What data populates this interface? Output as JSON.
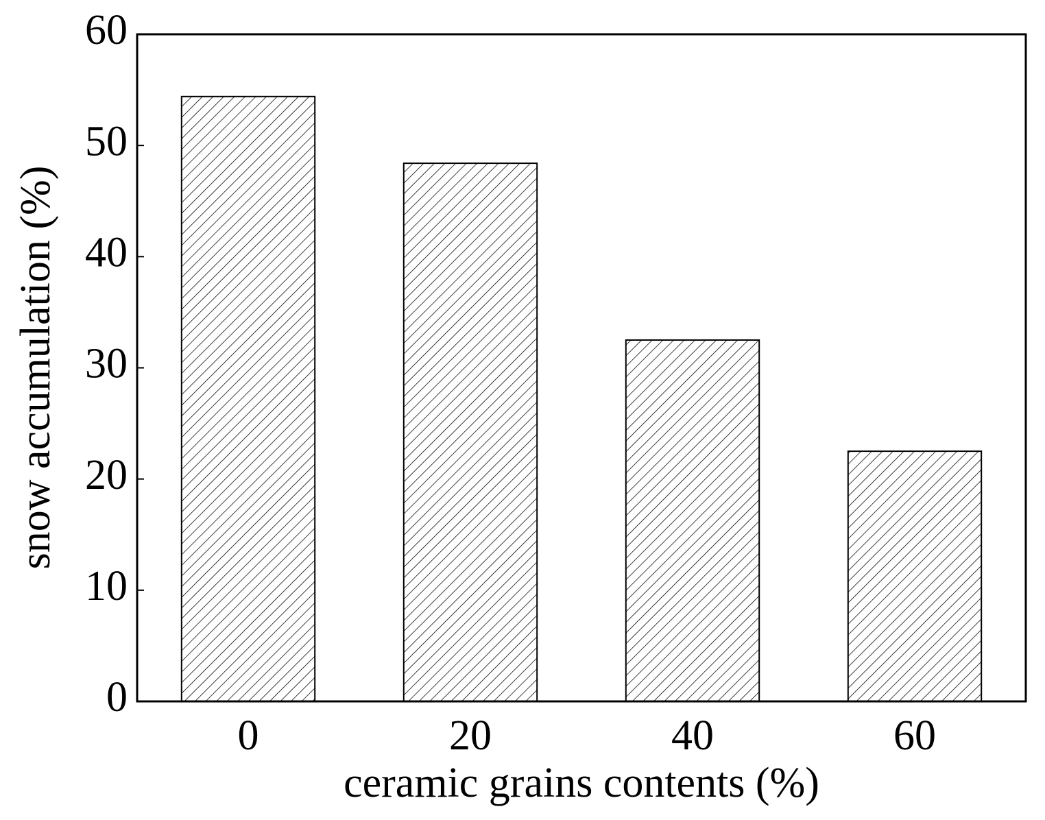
{
  "chart_data": {
    "type": "bar",
    "xlabel": "ceramic grains contents (%)",
    "ylabel": "snow accumulation (%)",
    "categories": [
      "0",
      "20",
      "40",
      "60"
    ],
    "values": [
      54.4,
      48.4,
      32.5,
      22.5
    ],
    "color": "#000000",
    "ylim": [
      0,
      60
    ],
    "yticks": [
      0,
      10,
      20,
      30,
      40,
      50,
      60
    ],
    "grid": false
  }
}
